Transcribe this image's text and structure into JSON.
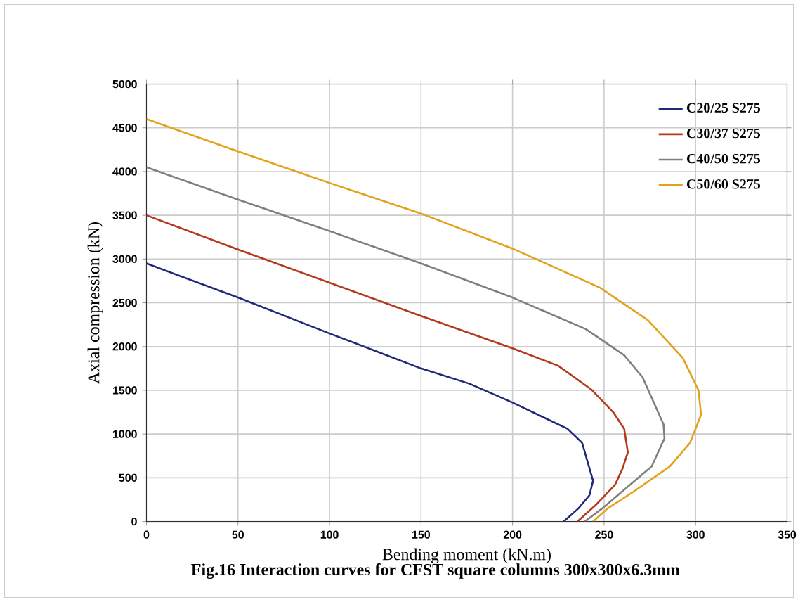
{
  "chart_data": {
    "type": "line",
    "xlabel": "Bending moment (kN.m)",
    "ylabel": "Axial compression (kN)",
    "annotations": [
      "Fig.16 Interaction curves for CFST  square columns 300x300x6.3mm"
    ],
    "xlim": [
      0,
      350
    ],
    "ylim": [
      0,
      5000
    ],
    "xticks": [
      0,
      50,
      100,
      150,
      200,
      250,
      300,
      350
    ],
    "yticks": [
      0,
      500,
      1000,
      1500,
      2000,
      2500,
      3000,
      3500,
      4000,
      4500,
      5000
    ],
    "grid": true,
    "legend": "top right",
    "marker": "none",
    "line_style": "solid",
    "series": [
      {
        "name": "C20/25 S275",
        "color": "#1f2a7a",
        "x": [
          0,
          50,
          100,
          150,
          176.5,
          200,
          217,
          230,
          238,
          244,
          242,
          236,
          228
        ],
        "values": [
          2950,
          2560,
          2150,
          1750,
          1575,
          1360,
          1190,
          1060,
          900,
          466,
          300,
          150,
          0
        ]
      },
      {
        "name": "C30/37 S275",
        "color": "#b5391a",
        "x": [
          0,
          50,
          100,
          150,
          200,
          225,
          243,
          255,
          261,
          263,
          260,
          256,
          246,
          235.5
        ],
        "values": [
          3500,
          3110,
          2730,
          2350,
          1980,
          1780,
          1510,
          1250,
          1060,
          790,
          600,
          420,
          200,
          0
        ]
      },
      {
        "name": "C40/50  S275",
        "color": "#7f7f7f",
        "x": [
          0,
          50,
          100,
          150,
          200,
          240,
          261,
          271,
          282.5,
          283,
          276,
          258,
          249,
          239.5
        ],
        "values": [
          4050,
          3680,
          3320,
          2950,
          2560,
          2200,
          1900,
          1650,
          1110,
          950,
          630,
          310,
          150,
          0
        ]
      },
      {
        "name": "C50/60  S275",
        "color": "#e3a21a",
        "x": [
          0,
          50,
          100,
          150,
          200,
          248,
          274,
          293,
          301.6,
          303,
          297,
          286,
          266,
          252,
          244
        ],
        "values": [
          4600,
          4230,
          3870,
          3520,
          3120,
          2670,
          2300,
          1870,
          1500,
          1220,
          900,
          630,
          340,
          150,
          0
        ]
      }
    ]
  }
}
